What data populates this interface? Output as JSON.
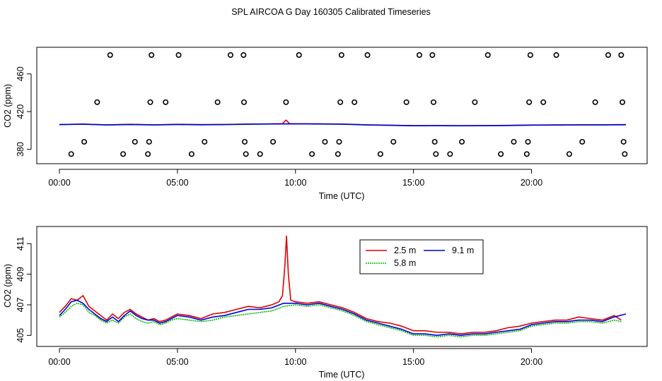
{
  "title": "SPL AIRCOA G  Day 160305  Calibrated Timeseries",
  "colors": {
    "2.5 m": "#dd0000",
    "5.8 m": "#00bb00",
    "9.1 m": "#0000dd",
    "points": "#000000"
  },
  "chart_data": [
    {
      "type": "scatter+line",
      "xlabel": "Time (UTC)",
      "ylabel": "CO2 (ppm)",
      "x_ticks": [
        "00:00",
        "05:00",
        "10:00",
        "15:00",
        "20:00"
      ],
      "xlim": [
        0,
        24.5
      ],
      "y_ticks": [
        "380",
        "420",
        "460"
      ],
      "ylim": [
        370,
        483
      ],
      "calibration_points": [
        {
          "x": 0.5,
          "y": 375
        },
        {
          "x": 1.05,
          "y": 388
        },
        {
          "x": 1.6,
          "y": 430
        },
        {
          "x": 2.15,
          "y": 480
        },
        {
          "x": 2.7,
          "y": 375
        },
        {
          "x": 3.2,
          "y": 388
        },
        {
          "x": 3.75,
          "y": 375
        },
        {
          "x": 3.8,
          "y": 388
        },
        {
          "x": 3.85,
          "y": 430
        },
        {
          "x": 3.9,
          "y": 480
        },
        {
          "x": 4.5,
          "y": 430
        },
        {
          "x": 5.05,
          "y": 480
        },
        {
          "x": 5.6,
          "y": 375
        },
        {
          "x": 6.15,
          "y": 388
        },
        {
          "x": 6.7,
          "y": 430
        },
        {
          "x": 7.25,
          "y": 480
        },
        {
          "x": 7.8,
          "y": 480
        },
        {
          "x": 7.82,
          "y": 430
        },
        {
          "x": 7.85,
          "y": 388
        },
        {
          "x": 7.9,
          "y": 375
        },
        {
          "x": 8.5,
          "y": 375
        },
        {
          "x": 9.05,
          "y": 388
        },
        {
          "x": 9.6,
          "y": 430
        },
        {
          "x": 10.15,
          "y": 480
        },
        {
          "x": 10.7,
          "y": 375
        },
        {
          "x": 11.25,
          "y": 388
        },
        {
          "x": 11.8,
          "y": 375
        },
        {
          "x": 11.85,
          "y": 388
        },
        {
          "x": 11.9,
          "y": 430
        },
        {
          "x": 11.95,
          "y": 480
        },
        {
          "x": 12.5,
          "y": 430
        },
        {
          "x": 13.05,
          "y": 480
        },
        {
          "x": 13.6,
          "y": 375
        },
        {
          "x": 14.15,
          "y": 388
        },
        {
          "x": 14.7,
          "y": 430
        },
        {
          "x": 15.25,
          "y": 480
        },
        {
          "x": 15.8,
          "y": 480
        },
        {
          "x": 15.85,
          "y": 430
        },
        {
          "x": 15.9,
          "y": 388
        },
        {
          "x": 15.95,
          "y": 375
        },
        {
          "x": 16.55,
          "y": 375
        },
        {
          "x": 17.05,
          "y": 388
        },
        {
          "x": 17.6,
          "y": 430
        },
        {
          "x": 18.15,
          "y": 480
        },
        {
          "x": 18.7,
          "y": 375
        },
        {
          "x": 19.25,
          "y": 388
        },
        {
          "x": 19.8,
          "y": 375
        },
        {
          "x": 19.85,
          "y": 388
        },
        {
          "x": 19.9,
          "y": 430
        },
        {
          "x": 19.95,
          "y": 480
        },
        {
          "x": 20.5,
          "y": 430
        },
        {
          "x": 21.05,
          "y": 480
        },
        {
          "x": 21.6,
          "y": 375
        },
        {
          "x": 22.15,
          "y": 388
        },
        {
          "x": 22.7,
          "y": 430
        },
        {
          "x": 23.25,
          "y": 480
        },
        {
          "x": 23.8,
          "y": 480
        },
        {
          "x": 23.85,
          "y": 430
        },
        {
          "x": 23.9,
          "y": 388
        },
        {
          "x": 23.95,
          "y": 375
        }
      ],
      "series": [
        {
          "name": "2.5 m",
          "x": [
            0,
            1,
            2,
            3,
            4,
            5,
            6,
            7,
            8,
            9,
            9.45,
            9.6,
            9.75,
            10,
            11,
            12,
            13,
            14,
            15,
            16,
            17,
            18,
            19,
            20,
            21,
            22,
            23,
            24
          ],
          "y": [
            406.3,
            406.8,
            406.0,
            406.5,
            406.0,
            406.5,
            406.2,
            406.4,
            406.8,
            407.0,
            407.2,
            411.0,
            407.3,
            407.1,
            407.0,
            406.8,
            406.0,
            405.6,
            405.1,
            405.2,
            405.0,
            405.2,
            405.4,
            405.8,
            405.9,
            406.0,
            406.1,
            406.3
          ]
        },
        {
          "name": "5.8 m",
          "x": [
            0,
            1,
            2,
            3,
            4,
            5,
            6,
            7,
            8,
            9,
            10,
            11,
            12,
            13,
            14,
            15,
            16,
            17,
            18,
            19,
            20,
            21,
            22,
            23,
            24
          ],
          "y": [
            406.1,
            406.6,
            405.7,
            406.2,
            405.8,
            406.2,
            406.0,
            406.1,
            406.5,
            406.8,
            406.9,
            406.8,
            406.6,
            405.8,
            405.4,
            404.9,
            405.0,
            404.9,
            405.0,
            405.2,
            405.6,
            405.7,
            405.8,
            405.9,
            406.0
          ]
        },
        {
          "name": "9.1 m",
          "x": [
            0,
            1,
            2,
            3,
            4,
            5,
            6,
            7,
            8,
            9,
            10,
            11,
            12,
            13,
            14,
            15,
            16,
            17,
            18,
            19,
            20,
            21,
            22,
            23,
            24
          ],
          "y": [
            406.2,
            406.7,
            405.9,
            406.4,
            405.9,
            406.4,
            406.1,
            406.3,
            406.7,
            406.9,
            407.0,
            406.9,
            406.7,
            405.9,
            405.5,
            405.0,
            405.1,
            405.0,
            405.1,
            405.3,
            405.7,
            405.8,
            405.9,
            406.0,
            406.1
          ]
        }
      ]
    },
    {
      "type": "line",
      "xlabel": "Time (UTC)",
      "ylabel": "CO2 (ppm)",
      "x_ticks": [
        "00:00",
        "05:00",
        "10:00",
        "15:00",
        "20:00"
      ],
      "xlim": [
        0,
        24.5
      ],
      "y_ticks": [
        "405",
        "407",
        "409",
        "411"
      ],
      "ylim": [
        404.6,
        411.8
      ],
      "legend": {
        "position": "top-center",
        "entries": [
          "2.5 m",
          "9.1 m",
          "5.8 m"
        ]
      },
      "series": [
        {
          "name": "2.5 m",
          "x": [
            0,
            0.25,
            0.5,
            0.75,
            1.0,
            1.25,
            1.5,
            1.75,
            2.0,
            2.25,
            2.5,
            2.75,
            3.0,
            3.25,
            3.5,
            3.75,
            4.0,
            4.25,
            4.5,
            4.75,
            5.0,
            5.5,
            6.0,
            6.5,
            7.0,
            7.5,
            8.0,
            8.5,
            9.0,
            9.3,
            9.45,
            9.55,
            9.62,
            9.7,
            9.8,
            10.0,
            10.5,
            11.0,
            11.5,
            12.0,
            12.5,
            13.0,
            13.5,
            14.0,
            14.5,
            15.0,
            15.5,
            16.0,
            16.5,
            17.0,
            17.5,
            18.0,
            18.5,
            19.0,
            19.5,
            20.0,
            20.5,
            21.0,
            21.5,
            22.0,
            22.5,
            23.0,
            23.5,
            23.8
          ],
          "y": [
            406.5,
            406.9,
            407.4,
            407.3,
            407.6,
            406.9,
            406.6,
            406.3,
            406.0,
            406.4,
            406.1,
            406.5,
            406.7,
            406.4,
            406.2,
            406.0,
            406.1,
            405.9,
            406.0,
            406.2,
            406.4,
            406.3,
            406.1,
            406.4,
            406.5,
            406.7,
            406.9,
            406.8,
            407.0,
            407.2,
            407.6,
            409.5,
            411.5,
            409.0,
            407.3,
            407.2,
            407.1,
            407.2,
            407.0,
            406.8,
            406.5,
            406.1,
            405.9,
            405.8,
            405.6,
            405.3,
            405.3,
            405.2,
            405.2,
            405.1,
            405.2,
            405.2,
            405.3,
            405.5,
            405.6,
            405.8,
            405.9,
            406.0,
            406.0,
            406.2,
            406.1,
            406.0,
            406.3,
            406.0
          ]
        },
        {
          "name": "5.8 m",
          "x": [
            0,
            0.25,
            0.5,
            0.75,
            1.0,
            1.25,
            1.5,
            1.75,
            2.0,
            2.25,
            2.5,
            2.75,
            3.0,
            3.25,
            3.5,
            3.75,
            4.0,
            4.25,
            4.5,
            4.75,
            5.0,
            5.5,
            6.0,
            6.5,
            7.0,
            7.5,
            8.0,
            8.5,
            9.0,
            9.5,
            10.0,
            10.5,
            11.0,
            11.5,
            12.0,
            12.5,
            13.0,
            13.5,
            14.0,
            14.5,
            15.0,
            15.5,
            16.0,
            16.5,
            17.0,
            17.5,
            18.0,
            18.5,
            19.0,
            19.5,
            20.0,
            20.5,
            21.0,
            21.5,
            22.0,
            22.5,
            23.0,
            23.5,
            23.8
          ],
          "y": [
            406.2,
            406.5,
            406.9,
            407.1,
            407.0,
            406.5,
            406.3,
            406.0,
            405.8,
            406.0,
            405.8,
            406.2,
            406.4,
            406.1,
            405.9,
            405.8,
            405.9,
            405.7,
            405.8,
            406.0,
            406.1,
            406.0,
            405.9,
            406.0,
            406.2,
            406.3,
            406.4,
            406.5,
            406.6,
            406.9,
            407.0,
            406.9,
            407.0,
            406.8,
            406.6,
            406.3,
            405.9,
            405.7,
            405.5,
            405.3,
            405.0,
            405.0,
            404.9,
            405.0,
            404.9,
            405.0,
            405.0,
            405.1,
            405.2,
            405.3,
            405.6,
            405.7,
            405.8,
            405.8,
            405.9,
            405.9,
            405.8,
            406.0,
            405.9
          ]
        },
        {
          "name": "9.1 m",
          "x": [
            0,
            0.25,
            0.5,
            0.75,
            1.0,
            1.25,
            1.5,
            1.75,
            2.0,
            2.25,
            2.5,
            2.75,
            3.0,
            3.25,
            3.5,
            3.75,
            4.0,
            4.25,
            4.5,
            4.75,
            5.0,
            5.5,
            6.0,
            6.5,
            7.0,
            7.5,
            8.0,
            8.5,
            9.0,
            9.5,
            10.0,
            10.5,
            11.0,
            11.5,
            12.0,
            12.5,
            13.0,
            13.5,
            14.0,
            14.5,
            15.0,
            15.5,
            16.0,
            16.5,
            17.0,
            17.5,
            18.0,
            18.5,
            19.0,
            19.5,
            20.0,
            20.5,
            21.0,
            21.5,
            22.0,
            22.5,
            23.0,
            23.5,
            24.0
          ],
          "y": [
            406.3,
            406.7,
            407.2,
            407.3,
            407.1,
            406.7,
            406.4,
            406.1,
            405.9,
            406.2,
            405.9,
            406.3,
            406.6,
            406.3,
            406.1,
            406.0,
            406.0,
            405.8,
            405.9,
            406.1,
            406.3,
            406.2,
            406.0,
            406.2,
            406.3,
            406.5,
            406.7,
            406.7,
            406.8,
            407.1,
            407.1,
            407.0,
            407.1,
            406.9,
            406.7,
            406.4,
            406.0,
            405.8,
            405.6,
            405.4,
            405.1,
            405.1,
            405.0,
            405.1,
            405.0,
            405.1,
            405.1,
            405.2,
            405.3,
            405.4,
            405.7,
            405.8,
            405.9,
            405.9,
            406.0,
            406.0,
            405.9,
            406.2,
            406.4
          ]
        }
      ]
    }
  ]
}
